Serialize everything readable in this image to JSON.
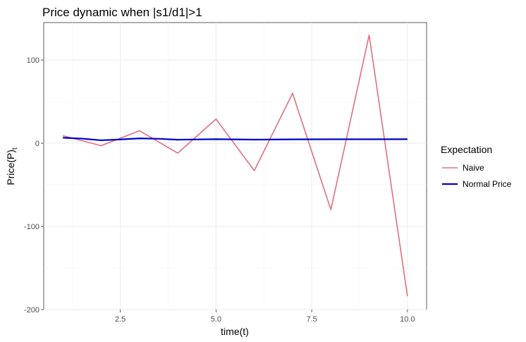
{
  "chart_data": {
    "type": "line",
    "title": "Price dynamic when |s1/d1|>1",
    "xlabel": "time(t)",
    "ylabel": "Price(P)",
    "ylabel_sub": "t",
    "xlim": [
      0.5,
      10.5
    ],
    "ylim": [
      -200,
      145
    ],
    "x_ticks": [
      2.5,
      5.0,
      7.5,
      10.0
    ],
    "x_tick_labels": [
      "2.5",
      "5.0",
      "7.5",
      "10.0"
    ],
    "y_ticks": [
      -200,
      -100,
      0,
      100
    ],
    "y_tick_labels": [
      "-200",
      "-100",
      "0",
      "100"
    ],
    "grid": true,
    "legend": {
      "title": "Expectation",
      "position": "right",
      "entries": [
        "Naive",
        "Normal Price"
      ]
    },
    "series": [
      {
        "name": "Naive",
        "color": "#e07080",
        "x": [
          1,
          2,
          3,
          4,
          5,
          6,
          7,
          8,
          9,
          10
        ],
        "values": [
          9,
          -3,
          15,
          -12,
          29,
          -33,
          60,
          -80,
          130,
          -184
        ]
      },
      {
        "name": "Normal Price",
        "color": "#0000cc",
        "x": [
          1,
          1.5,
          2,
          2.5,
          3,
          3.5,
          4,
          5,
          6,
          7,
          8,
          9,
          10
        ],
        "values": [
          6.5,
          5.5,
          3.5,
          4.5,
          5.8,
          5.3,
          4.2,
          4.8,
          4.3,
          4.6,
          4.7,
          4.7,
          4.8
        ]
      }
    ]
  }
}
